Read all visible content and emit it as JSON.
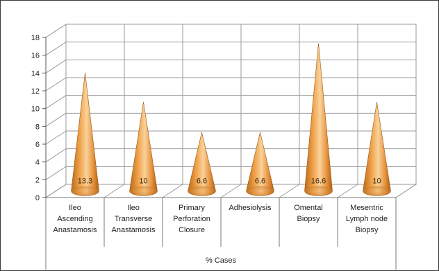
{
  "chart_data": {
    "type": "bar",
    "shape": "3d-cone",
    "categories": [
      [
        "Ileo",
        "Ascending",
        "Anastamosis"
      ],
      [
        "Ileo",
        "Transverse",
        "Anastamosis"
      ],
      [
        "Primary",
        "Perforation",
        "Closure"
      ],
      [
        "Adhesiolysis"
      ],
      [
        "Omental",
        "Biopsy"
      ],
      [
        "Mesentric",
        "Lymph node",
        "Biopsy"
      ]
    ],
    "values": [
      13.3,
      10,
      6.6,
      6.6,
      16.6,
      10
    ],
    "data_labels": [
      "13.3",
      "10",
      "6.6",
      "6.6",
      "16.6",
      "10"
    ],
    "xlabel": "% Cases",
    "ylim": [
      0,
      18
    ],
    "yticks": [
      0,
      2,
      4,
      6,
      8,
      10,
      12,
      14,
      16,
      18
    ],
    "grid": true,
    "colors": {
      "cone_light": "#f7c88a",
      "cone_mid": "#f0a048",
      "cone_dark": "#b96a18",
      "grid": "#9a9a9a"
    }
  }
}
